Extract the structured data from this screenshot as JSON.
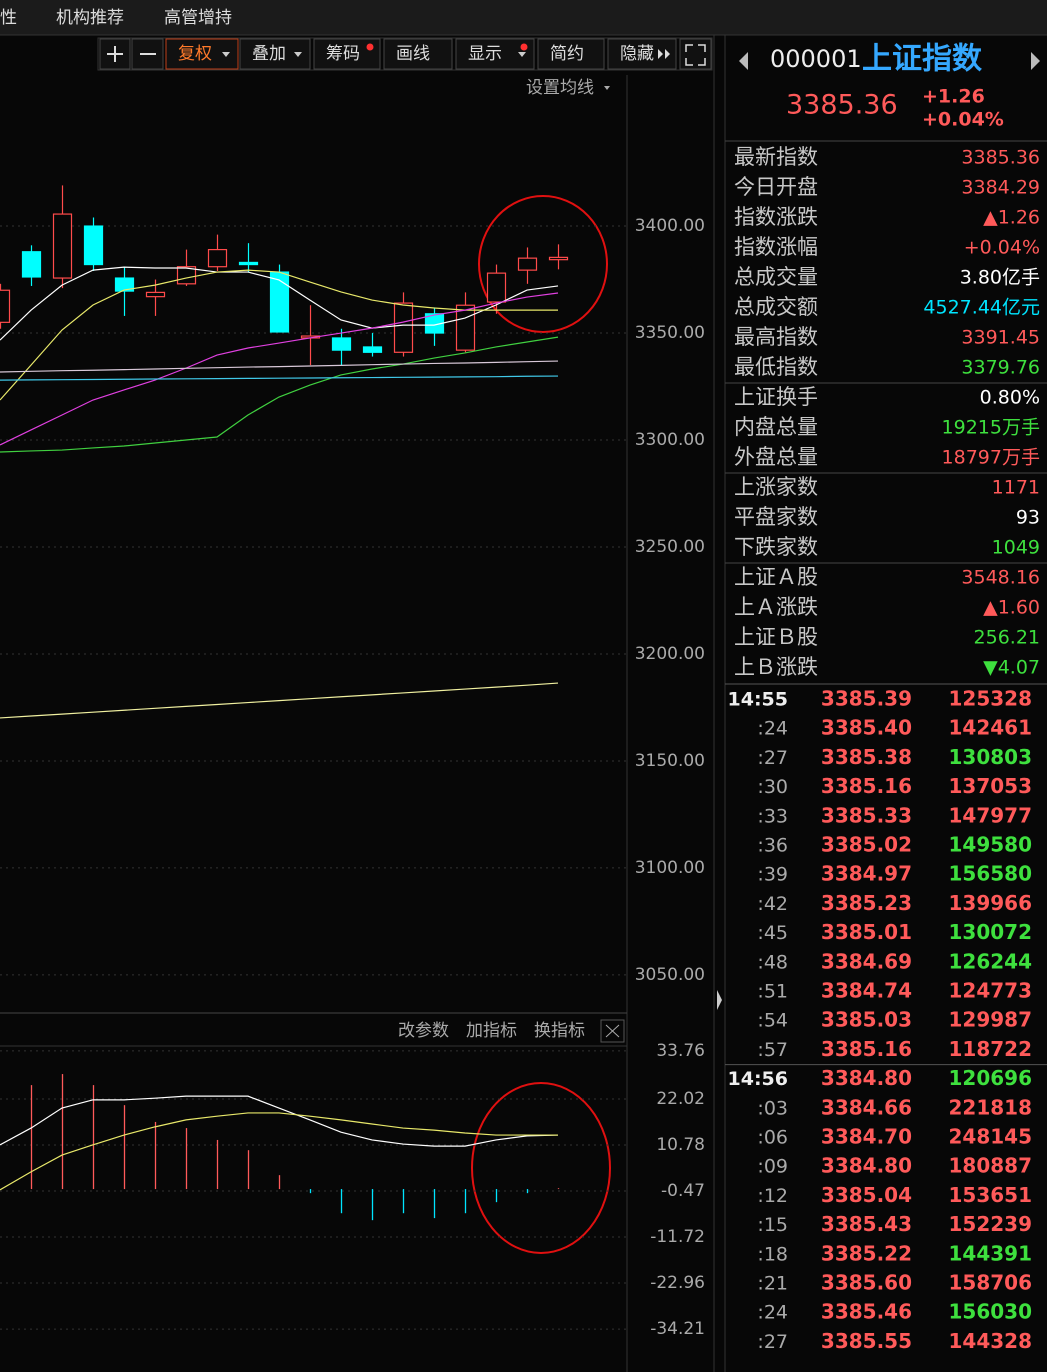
{
  "menu": [
    "性",
    "机构推荐",
    "高管增持"
  ],
  "toolbar": [
    "复权",
    "叠加",
    "筹码",
    "画线",
    "显示",
    "简约",
    "隐藏"
  ],
  "ma_setting": "设置均线",
  "indicator_buttons": [
    "改参数",
    "加指标",
    "换指标"
  ],
  "chart_data": [
    {
      "type": "candlestick",
      "ylim": [
        3033.6,
        3470.6
      ],
      "yticks": [
        {
          "value": 3400,
          "label": "3400.00"
        },
        {
          "value": 3350,
          "label": "3350.00"
        },
        {
          "value": 3300,
          "label": "3300.00"
        },
        {
          "value": 3250,
          "label": "3250.00"
        },
        {
          "value": 3200,
          "label": "3200.00"
        },
        {
          "value": 3150,
          "label": "3150.00"
        },
        {
          "value": 3100,
          "label": "3100.00"
        },
        {
          "value": 3050,
          "label": "3050.00"
        }
      ],
      "up_color": "#ff4b4b",
      "down_color": "#00ffff",
      "open": [
        3355,
        3388,
        3375.7,
        3400,
        3375.7,
        3367,
        3373,
        3381,
        3383,
        3378.5,
        3347.7,
        3347.7,
        3343.5,
        3341,
        3359,
        3342,
        3364.5,
        3379.4,
        3384.29
      ],
      "high": [
        3373,
        3391,
        3419,
        3404,
        3381,
        3375,
        3389,
        3396,
        3392,
        3382,
        3363,
        3352,
        3350,
        3369,
        3362,
        3369,
        3382,
        3390,
        3391.45
      ],
      "low": [
        3352,
        3372,
        3371,
        3379,
        3358,
        3358,
        3372,
        3379,
        3378.5,
        3350.5,
        3335,
        3335,
        3339,
        3339,
        3344,
        3341,
        3359,
        3373,
        3379.76
      ],
      "close": [
        3370,
        3376.2,
        3405.6,
        3382,
        3369.6,
        3369,
        3381,
        3389,
        3382,
        3350.5,
        3348.6,
        3342,
        3341,
        3364,
        3350,
        3363,
        3378,
        3385,
        3385.36
      ],
      "lines": [
        {
          "color": "#ffffff",
          "values": [
            3346.7,
            3360.7,
            3372.4,
            3379.4,
            3380.8,
            3380.4,
            3380.4,
            3378.5,
            3378.5,
            3374.8,
            3365.4,
            3356.1,
            3352.3,
            3353.7,
            3353.7,
            3357,
            3363.1,
            3370.1,
            3372
          ]
        },
        {
          "color": "#e8e86a",
          "values": [
            3318.7,
            3335,
            3351.4,
            3363.1,
            3370.1,
            3372.4,
            3375.7,
            3378.5,
            3379.4,
            3378.5,
            3373.8,
            3369.2,
            3365.4,
            3363.1,
            3361.7,
            3360.7,
            3360.7,
            3360.7,
            3360.7
          ]
        },
        {
          "color": "#e040e0",
          "values": [
            3297.7,
            3304.7,
            3311.7,
            3318.7,
            3323.4,
            3328,
            3333.6,
            3339.7,
            3343,
            3345.3,
            3347.7,
            3350,
            3352.3,
            3355.1,
            3358.4,
            3360.7,
            3364,
            3366.8,
            3368.7
          ]
        },
        {
          "color": "#40d040",
          "values": [
            3294.4,
            3294.9,
            3295.3,
            3296.3,
            3297.2,
            3298.6,
            3300,
            3301.4,
            3311.7,
            3320.1,
            3325.7,
            3330.4,
            3333.2,
            3335.5,
            3338.3,
            3340.7,
            3343.5,
            3345.8,
            3348.1
          ]
        },
        {
          "color": "#d8c8d8",
          "values": [
            3331.8,
            3332.1,
            3332.4,
            3332.6,
            3332.9,
            3333.2,
            3333.5,
            3333.8,
            3334.1,
            3334.3,
            3334.6,
            3334.9,
            3335.2,
            3335.5,
            3335.8,
            3336.0,
            3336.3,
            3336.6,
            3336.9
          ]
        },
        {
          "color": "#40c8e8",
          "values": [
            3328.0,
            3328.1,
            3328.2,
            3328.3,
            3328.4,
            3328.5,
            3328.6,
            3328.7,
            3328.8,
            3328.9,
            3329.0,
            3329.1,
            3329.2,
            3329.3,
            3329.4,
            3329.5,
            3329.6,
            3329.8,
            3329.9
          ]
        },
        {
          "color": "#f0f0a0",
          "values": [
            3170.1,
            3171.0,
            3171.9,
            3172.8,
            3173.7,
            3174.6,
            3175.5,
            3176.4,
            3177.3,
            3178.2,
            3179.1,
            3180.0,
            3180.9,
            3181.8,
            3182.7,
            3183.6,
            3184.5,
            3185.4,
            3186.4
          ]
        }
      ]
    },
    {
      "type": "macd",
      "ylim": [
        -44.7,
        35.2
      ],
      "yticks": [
        33.76,
        22.02,
        10.78,
        -0.47,
        -11.72,
        -22.96,
        -34.21
      ],
      "up_color": "#ff5a5a",
      "down_color": "#00e5ff",
      "values": [
        null,
        25.4,
        28.1,
        25.4,
        20.5,
        16.4,
        14.9,
        12.0,
        9.5,
        3.4,
        -1.0,
        -5.9,
        -7.6,
        -5.9,
        -7.1,
        -5.9,
        -3.2,
        -1.0,
        0.2
      ],
      "lines": [
        {
          "color": "#ffffff",
          "values": [
            10.8,
            14.9,
            19.8,
            21.8,
            21.8,
            22.2,
            22.7,
            22.7,
            22.7,
            19.8,
            16.9,
            13.9,
            12.0,
            11.0,
            10.5,
            10.5,
            12.0,
            13.0,
            13.2
          ]
        },
        {
          "color": "#e8e86a",
          "values": [
            -0.2,
            4.2,
            8.3,
            10.8,
            13.2,
            15.2,
            16.9,
            17.8,
            18.6,
            18.6,
            17.8,
            16.9,
            15.9,
            14.9,
            14.4,
            13.7,
            13.2,
            13.2,
            13.2
          ]
        }
      ]
    }
  ],
  "quote": {
    "code": "000001",
    "name": "上证指数",
    "price": "3385.36",
    "change": "+1.26",
    "change_pct": "+0.04%",
    "rows": [
      {
        "label": "最新指数",
        "value": "3385.36",
        "color": "#ff5a5a"
      },
      {
        "label": "今日开盘",
        "value": "3384.29",
        "color": "#ff5a5a"
      },
      {
        "label": "指数涨跌",
        "value": "▲1.26",
        "color": "#ff5a5a"
      },
      {
        "label": "指数涨幅",
        "value": "+0.04%",
        "color": "#ff5a5a"
      },
      {
        "label": "总成交量",
        "value": "3.80亿手",
        "color": "#ffffff"
      },
      {
        "label": "总成交额",
        "value": "4527.44亿元",
        "color": "#00e5ff"
      },
      {
        "label": "最高指数",
        "value": "3391.45",
        "color": "#ff5a5a"
      },
      {
        "label": "最低指数",
        "value": "3379.76",
        "color": "#3ee03e"
      },
      {
        "label": "上证换手",
        "value": "0.80%",
        "color": "#ffffff"
      },
      {
        "label": "内盘总量",
        "value": "19215万手",
        "color": "#3ee03e"
      },
      {
        "label": "外盘总量",
        "value": "18797万手",
        "color": "#ff5a5a"
      },
      {
        "label": "上涨家数",
        "value": "1171",
        "color": "#ff5a5a"
      },
      {
        "label": "平盘家数",
        "value": "93",
        "color": "#ffffff"
      },
      {
        "label": "下跌家数",
        "value": "1049",
        "color": "#3ee03e"
      },
      {
        "label": "上证Ａ股",
        "value": "3548.16",
        "color": "#ff5a5a"
      },
      {
        "label": "上Ａ涨跌",
        "value": "▲1.60",
        "color": "#ff5a5a"
      },
      {
        "label": "上证Ｂ股",
        "value": "256.21",
        "color": "#3ee03e"
      },
      {
        "label": "上Ｂ涨跌",
        "value": "▼4.07",
        "color": "#3ee03e"
      }
    ]
  },
  "ticks": {
    "price_color": "#ff5a5a",
    "rows": [
      {
        "time": "14:55",
        "price": "3385.39",
        "volume": "125328",
        "color": "#ff5a5a"
      },
      {
        "time": ":24",
        "price": "3385.40",
        "volume": "142461",
        "color": "#ff5a5a"
      },
      {
        "time": ":27",
        "price": "3385.38",
        "volume": "130803",
        "color": "#3ee03e"
      },
      {
        "time": ":30",
        "price": "3385.16",
        "volume": "137053",
        "color": "#ff5a5a"
      },
      {
        "time": ":33",
        "price": "3385.33",
        "volume": "147977",
        "color": "#ff5a5a"
      },
      {
        "time": ":36",
        "price": "3385.02",
        "volume": "149580",
        "color": "#3ee03e"
      },
      {
        "time": ":39",
        "price": "3384.97",
        "volume": "156580",
        "color": "#3ee03e"
      },
      {
        "time": ":42",
        "price": "3385.23",
        "volume": "139966",
        "color": "#ff5a5a"
      },
      {
        "time": ":45",
        "price": "3385.01",
        "volume": "130072",
        "color": "#3ee03e"
      },
      {
        "time": ":48",
        "price": "3384.69",
        "volume": "126244",
        "color": "#3ee03e"
      },
      {
        "time": ":51",
        "price": "3384.74",
        "volume": "124773",
        "color": "#ff5a5a"
      },
      {
        "time": ":54",
        "price": "3385.03",
        "volume": "129987",
        "color": "#ff5a5a"
      },
      {
        "time": ":57",
        "price": "3385.16",
        "volume": "118722",
        "color": "#ff5a5a"
      },
      {
        "time": "14:56",
        "price": "3384.80",
        "volume": "120696",
        "color": "#3ee03e"
      },
      {
        "time": ":03",
        "price": "3384.66",
        "volume": "221818",
        "color": "#ff5a5a"
      },
      {
        "time": ":06",
        "price": "3384.70",
        "volume": "248145",
        "color": "#ff5a5a"
      },
      {
        "time": ":09",
        "price": "3384.80",
        "volume": "180887",
        "color": "#ff5a5a"
      },
      {
        "time": ":12",
        "price": "3385.04",
        "volume": "153651",
        "color": "#ff5a5a"
      },
      {
        "time": ":15",
        "price": "3385.43",
        "volume": "152239",
        "color": "#ff5a5a"
      },
      {
        "time": ":18",
        "price": "3385.22",
        "volume": "144391",
        "color": "#3ee03e"
      },
      {
        "time": ":21",
        "price": "3385.60",
        "volume": "158706",
        "color": "#ff5a5a"
      },
      {
        "time": ":24",
        "price": "3385.46",
        "volume": "156030",
        "color": "#3ee03e"
      },
      {
        "time": ":27",
        "price": "3385.55",
        "volume": "144328",
        "color": "#ff5a5a"
      }
    ]
  }
}
